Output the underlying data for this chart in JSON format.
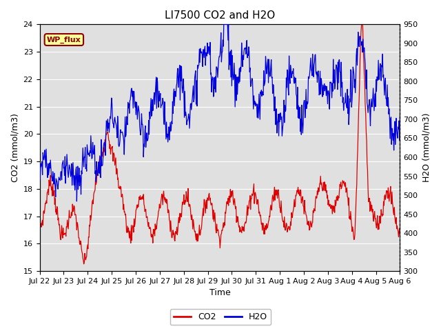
{
  "title": "LI7500 CO2 and H2O",
  "xlabel": "Time",
  "ylabel_left": "CO2 (mmol/m3)",
  "ylabel_right": "H2O (mmol/m3)",
  "co2_ylim": [
    15.0,
    24.0
  ],
  "h2o_ylim": [
    300,
    950
  ],
  "co2_yticks": [
    15.0,
    16.0,
    17.0,
    18.0,
    19.0,
    20.0,
    21.0,
    22.0,
    23.0,
    24.0
  ],
  "h2o_yticks": [
    300,
    350,
    400,
    450,
    500,
    550,
    600,
    650,
    700,
    750,
    800,
    850,
    900,
    950
  ],
  "xtick_labels": [
    "Jul 22",
    "Jul 23",
    "Jul 24",
    "Jul 25",
    "Jul 26",
    "Jul 27",
    "Jul 28",
    "Jul 29",
    "Jul 30",
    "Jul 31",
    "Aug 1",
    "Aug 2",
    "Aug 3",
    "Aug 4",
    "Aug 5",
    "Aug 6"
  ],
  "annotation_text": "WP_flux",
  "bg_color": "#ffffff",
  "plot_bg_color": "#e0e0e0",
  "stripe_color": "#cccccc",
  "co2_color": "#dd0000",
  "h2o_color": "#0000dd",
  "grid_color": "#ffffff",
  "title_fontsize": 11,
  "label_fontsize": 9,
  "tick_fontsize": 8
}
